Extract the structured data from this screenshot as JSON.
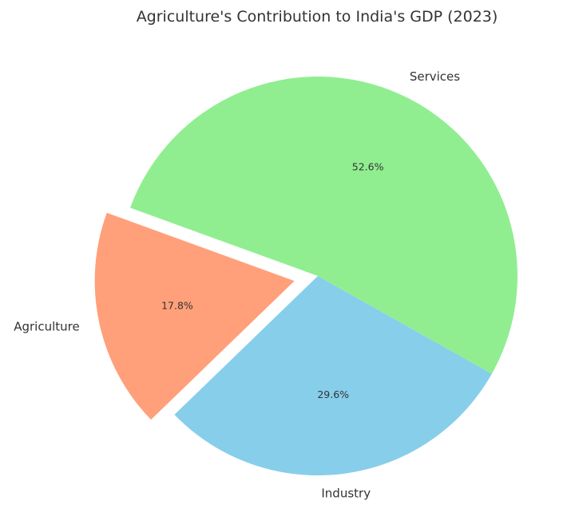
{
  "chart_data": {
    "type": "pie",
    "title": "Agriculture's Contribution to India's GDP (2023)",
    "categories": [
      "Agriculture",
      "Industry",
      "Services"
    ],
    "values": [
      17.8,
      29.6,
      52.6
    ],
    "value_labels": [
      "17.8%",
      "29.6%",
      "52.6%"
    ],
    "colors": [
      "#ffa07a",
      "#87ceeb",
      "#90ee90"
    ],
    "exploded": [
      "Agriculture"
    ],
    "legend": "none"
  }
}
